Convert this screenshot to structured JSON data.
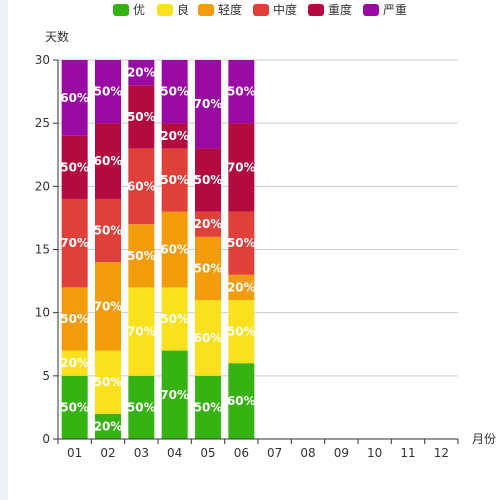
{
  "chart_data": {
    "type": "bar",
    "stacked": true,
    "xlabel": "月份",
    "ylabel": "天数",
    "ylim": [
      0,
      30
    ],
    "yticks": [
      0,
      5,
      10,
      15,
      20,
      25,
      30
    ],
    "grid": true,
    "legend_position": "top-center",
    "categories": [
      "01",
      "02",
      "03",
      "04",
      "05",
      "06",
      "07",
      "08",
      "09",
      "10",
      "11",
      "12"
    ],
    "series": [
      {
        "name": "优",
        "color": "#36b312",
        "values": [
          5,
          2,
          5,
          7,
          5,
          6,
          null,
          null,
          null,
          null,
          null,
          null
        ],
        "labels": [
          "50%",
          "20%",
          "50%",
          "70%",
          "50%",
          "60%",
          null,
          null,
          null,
          null,
          null,
          null
        ]
      },
      {
        "name": "良",
        "color": "#f9e11d",
        "values": [
          2,
          5,
          7,
          5,
          6,
          5,
          null,
          null,
          null,
          null,
          null,
          null
        ],
        "labels": [
          "20%",
          "50%",
          "70%",
          "50%",
          "60%",
          "50%",
          null,
          null,
          null,
          null,
          null,
          null
        ]
      },
      {
        "name": "轻度",
        "color": "#f39c0b",
        "values": [
          5,
          7,
          5,
          6,
          5,
          2,
          null,
          null,
          null,
          null,
          null,
          null
        ],
        "labels": [
          "50%",
          "70%",
          "50%",
          "60%",
          "50%",
          "20%",
          null,
          null,
          null,
          null,
          null,
          null
        ]
      },
      {
        "name": "中度",
        "color": "#e0403a",
        "values": [
          7,
          5,
          6,
          5,
          2,
          5,
          null,
          null,
          null,
          null,
          null,
          null
        ],
        "labels": [
          "70%",
          "50%",
          "60%",
          "50%",
          "20%",
          "50%",
          null,
          null,
          null,
          null,
          null,
          null
        ]
      },
      {
        "name": "重度",
        "color": "#b30a40",
        "values": [
          5,
          6,
          5,
          2,
          5,
          7,
          null,
          null,
          null,
          null,
          null,
          null
        ],
        "labels": [
          "50%",
          "60%",
          "50%",
          "20%",
          "50%",
          "70%",
          null,
          null,
          null,
          null,
          null,
          null
        ]
      },
      {
        "name": "严重",
        "color": "#990aa2",
        "values": [
          6,
          5,
          2,
          5,
          7,
          5,
          null,
          null,
          null,
          null,
          null,
          null
        ],
        "labels": [
          "60%",
          "50%",
          "20%",
          "50%",
          "70%",
          "50%",
          null,
          null,
          null,
          null,
          null,
          null
        ]
      }
    ]
  }
}
